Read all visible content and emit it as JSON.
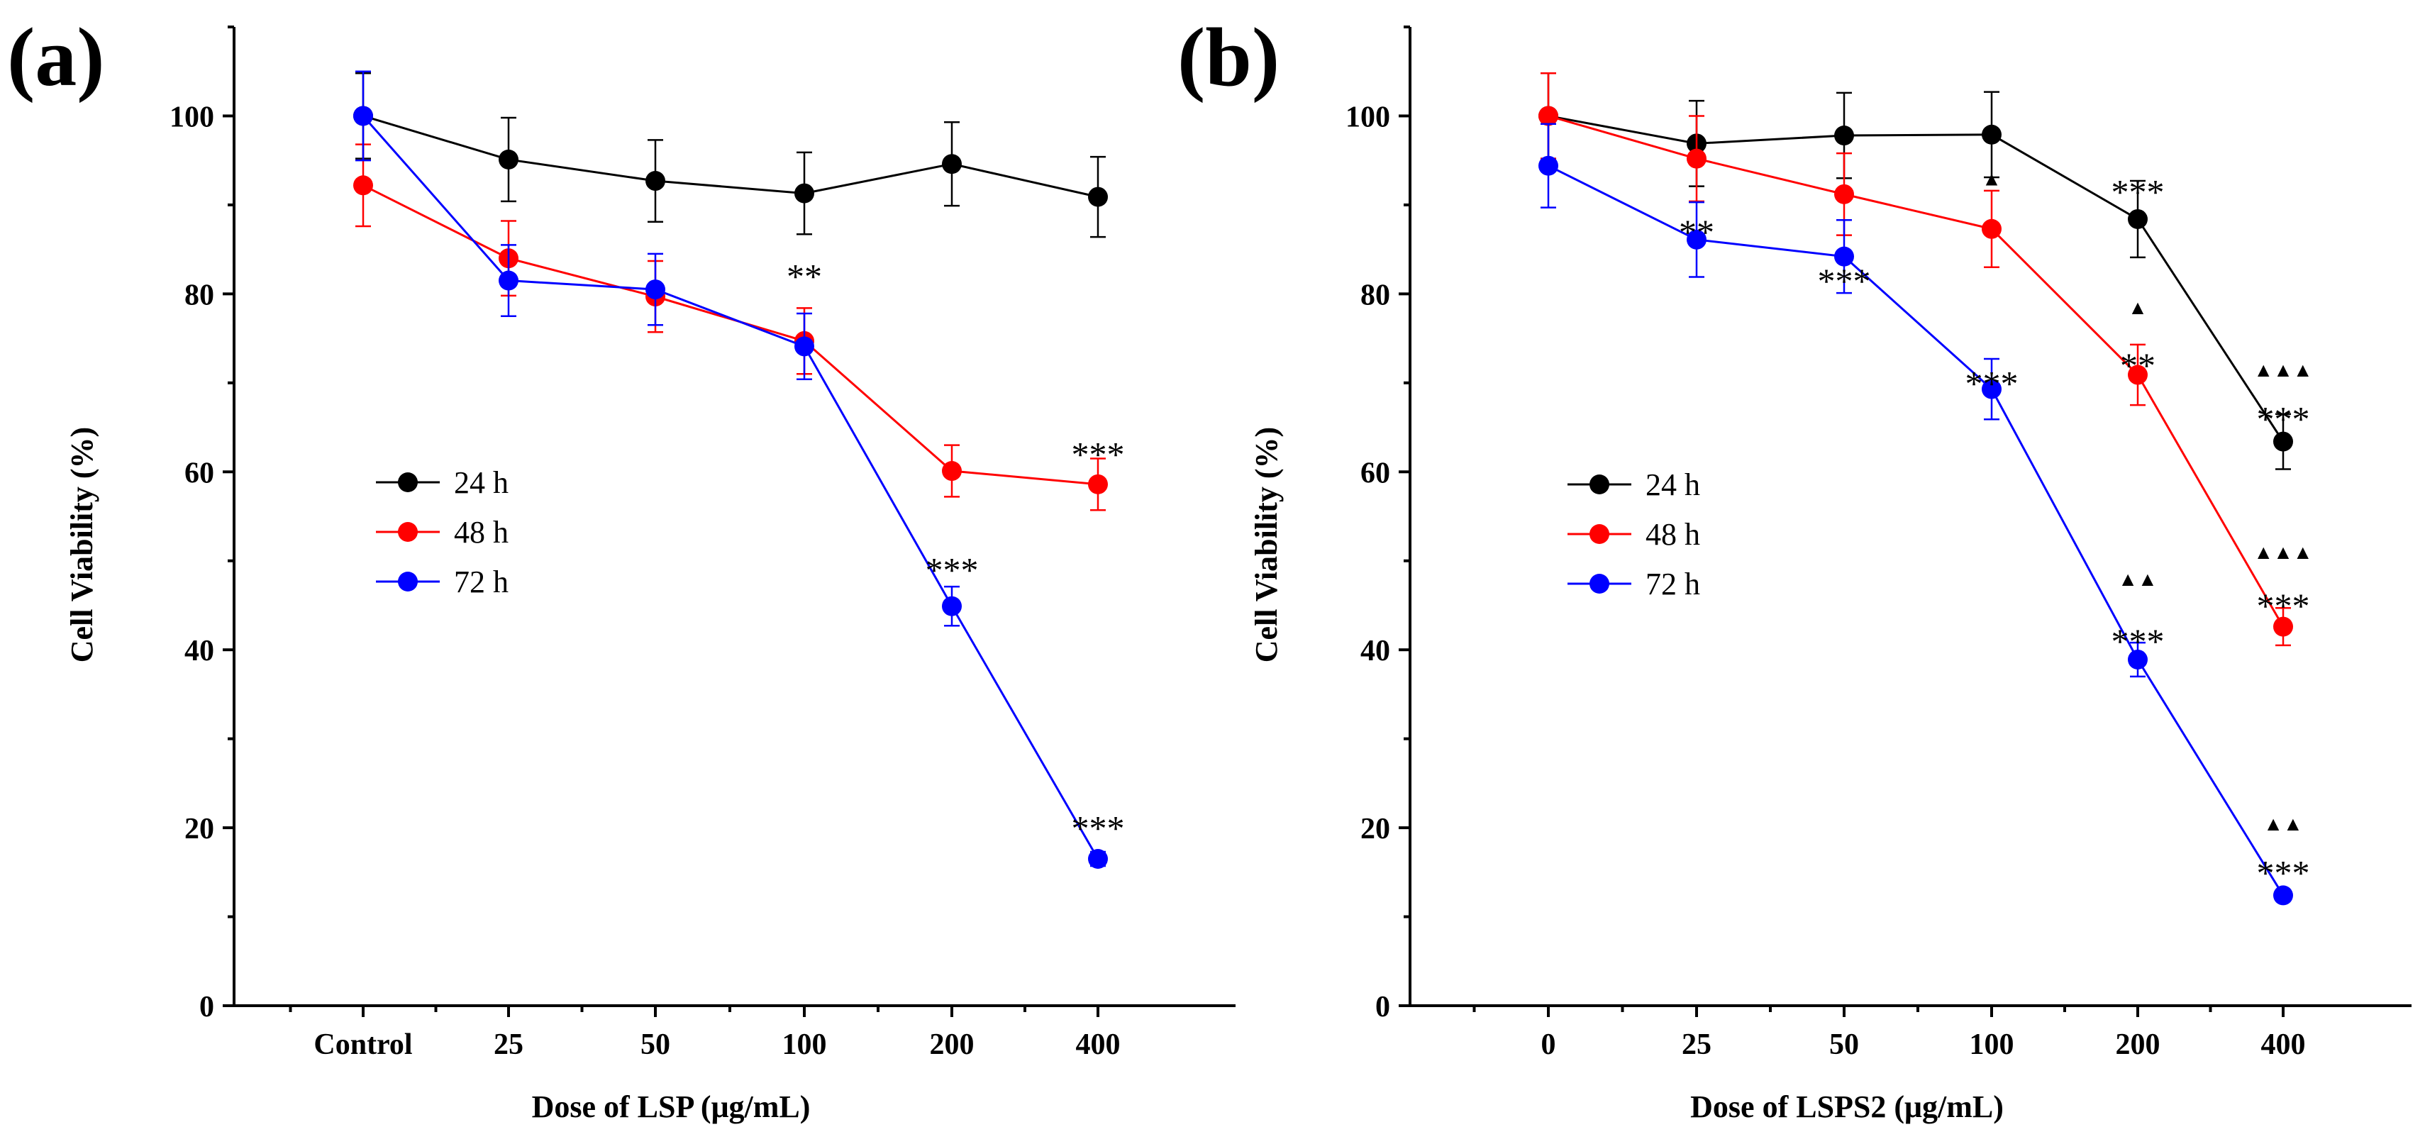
{
  "colors": {
    "24 h": "#000000",
    "48 h": "#ff0000",
    "72 h": "#0000ff"
  },
  "chart_data": [
    {
      "type": "line",
      "panel_label": "(a)",
      "xlabel": "Dose of LSP (μg/mL)",
      "ylabel": "Cell Viability (%)",
      "categories": [
        "Control",
        "25",
        "50",
        "100",
        "200",
        "400"
      ],
      "ylim": [
        0,
        110
      ],
      "yticks": [
        0,
        20,
        40,
        60,
        80,
        100
      ],
      "legend_position": "middle-left",
      "series": [
        {
          "name": "24 h",
          "values": [
            100,
            95.1,
            92.7,
            91.3,
            94.6,
            90.9
          ],
          "errors": [
            4.8,
            4.7,
            4.6,
            4.6,
            4.7,
            4.5
          ]
        },
        {
          "name": "48 h",
          "values": [
            92.2,
            84.0,
            79.7,
            74.7,
            60.1,
            58.6
          ],
          "errors": [
            4.6,
            4.2,
            4.0,
            3.7,
            2.9,
            2.9
          ]
        },
        {
          "name": "72 h",
          "values": [
            100,
            81.5,
            80.5,
            74.1,
            44.9,
            16.5
          ],
          "errors": [
            5.0,
            4.0,
            4.0,
            3.7,
            2.2,
            0.8
          ]
        }
      ],
      "annotations": [
        {
          "category": "100",
          "y": 83,
          "text": "**"
        },
        {
          "category": "200",
          "y": 50,
          "text": "***"
        },
        {
          "category": "400",
          "y": 63,
          "text": "***"
        },
        {
          "category": "400",
          "y": 21,
          "text": "***"
        }
      ]
    },
    {
      "type": "line",
      "panel_label": "(b)",
      "xlabel": "Dose of LSPS2 (μg/mL)",
      "ylabel": "Cell Viability (%)",
      "categories": [
        "0",
        "25",
        "50",
        "100",
        "200",
        "400"
      ],
      "ylim": [
        0,
        110
      ],
      "yticks": [
        0,
        20,
        40,
        60,
        80,
        100
      ],
      "legend_position": "middle-left",
      "series": [
        {
          "name": "24 h",
          "values": [
            100,
            96.9,
            97.8,
            97.9,
            88.4,
            63.4
          ],
          "errors": [
            4.8,
            4.8,
            4.8,
            4.8,
            4.3,
            3.1
          ]
        },
        {
          "name": "48 h",
          "values": [
            100,
            95.2,
            91.2,
            87.3,
            70.9,
            42.6
          ],
          "errors": [
            4.8,
            4.8,
            4.6,
            4.3,
            3.4,
            2.1
          ]
        },
        {
          "name": "72 h",
          "values": [
            94.4,
            86.1,
            84.2,
            69.3,
            38.9,
            12.4
          ],
          "errors": [
            4.7,
            4.2,
            4.1,
            3.4,
            1.9,
            0.6
          ]
        }
      ],
      "annotations": [
        {
          "category": "25",
          "y": 88,
          "text": "**"
        },
        {
          "category": "50",
          "y": 82.5,
          "text": "***"
        },
        {
          "category": "100",
          "y": 71,
          "text": "***"
        },
        {
          "category": "200",
          "y": 92.5,
          "text": "***"
        },
        {
          "category": "200",
          "y": 73,
          "text": "**"
        },
        {
          "category": "200",
          "y": 42,
          "text": "***"
        },
        {
          "category": "400",
          "y": 67,
          "text": "***"
        },
        {
          "category": "400",
          "y": 46,
          "text": "***"
        },
        {
          "category": "400",
          "y": 16,
          "text": "***"
        },
        {
          "category": "100",
          "y": 93,
          "text": "▲"
        },
        {
          "category": "200",
          "y": 78.5,
          "text": "▲"
        },
        {
          "category": "200",
          "y": 48,
          "text": "▲▲"
        },
        {
          "category": "400",
          "y": 71.5,
          "text": "▲▲▲"
        },
        {
          "category": "400",
          "y": 51,
          "text": "▲▲▲"
        },
        {
          "category": "400",
          "y": 20.5,
          "text": "▲▲"
        }
      ]
    }
  ]
}
